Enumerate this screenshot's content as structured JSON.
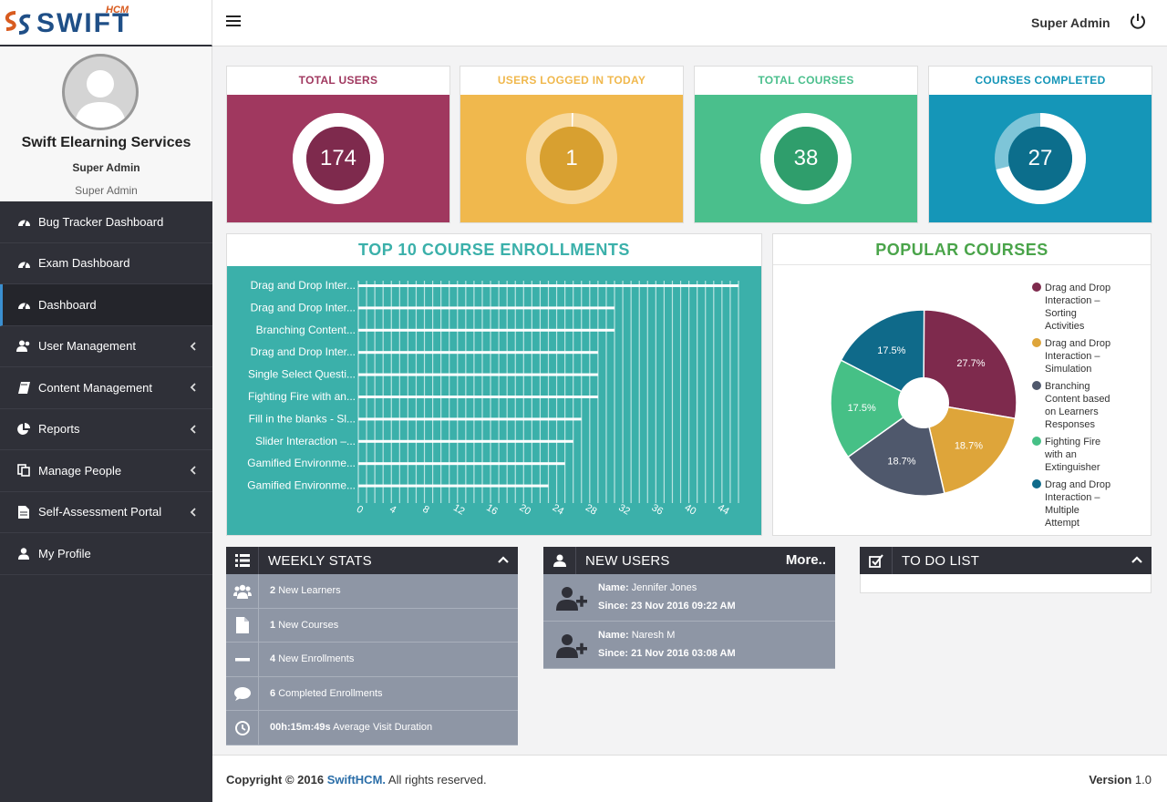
{
  "app": {
    "logo_text": "SWIFT",
    "logo_sub": "HCM"
  },
  "header": {
    "user_name": "Super Admin"
  },
  "profile": {
    "name": "Swift Elearning Services",
    "role": "Super Admin",
    "role_secondary": "Super Admin"
  },
  "sidebar": {
    "items": [
      {
        "label": "Bug Tracker Dashboard",
        "icon": "dashboard-icon",
        "active": false,
        "has_caret": false
      },
      {
        "label": "Exam Dashboard",
        "icon": "dashboard-icon",
        "active": false,
        "has_caret": false
      },
      {
        "label": "Dashboard",
        "icon": "dashboard-icon",
        "active": true,
        "has_caret": false
      },
      {
        "label": "User Management",
        "icon": "users-icon",
        "active": false,
        "has_caret": true
      },
      {
        "label": "Content Management",
        "icon": "book-icon",
        "active": false,
        "has_caret": true
      },
      {
        "label": "Reports",
        "icon": "pie-chart-icon",
        "active": false,
        "has_caret": true
      },
      {
        "label": "Manage People",
        "icon": "copy-icon",
        "active": false,
        "has_caret": true
      },
      {
        "label": "Self-Assessment Portal",
        "icon": "file-icon",
        "active": false,
        "has_caret": true
      },
      {
        "label": "My Profile",
        "icon": "user-icon",
        "active": false,
        "has_caret": false
      }
    ]
  },
  "stats": [
    {
      "title": "TOTAL USERS",
      "value": "174",
      "color": "#a0385f",
      "inner": "#7e2a4d",
      "title_color": "#a0385f",
      "fill": 1.0
    },
    {
      "title": "USERS LOGGED IN TODAY",
      "value": "1",
      "color": "#f0b84d",
      "inner": "#d8a030",
      "title_color": "#f0b84d",
      "fill": 0.006
    },
    {
      "title": "TOTAL COURSES",
      "value": "38",
      "color": "#4abf8c",
      "inner": "#2f9e6c",
      "title_color": "#4abf8c",
      "fill": 1.0
    },
    {
      "title": "COURSES COMPLETED",
      "value": "27",
      "color": "#1596b8",
      "inner": "#0c6e8c",
      "title_color": "#1596b8",
      "fill": 0.71
    }
  ],
  "enrollments": {
    "title": "TOP 10 COURSE ENROLLMENTS"
  },
  "popular": {
    "title": "POPULAR COURSES"
  },
  "chart_data": [
    {
      "type": "bar",
      "orientation": "horizontal",
      "title": "TOP 10 COURSE ENROLLMENTS",
      "categories": [
        "Drag and Drop Inter...",
        "Drag and Drop Inter...",
        "Branching Content...",
        "Drag and Drop Inter...",
        "Single Select Questi...",
        "Fighting Fire with an...",
        "Fill in the blanks - Sl...",
        "Slider Interaction –...",
        "Gamified Environme...",
        "Gamified Environme..."
      ],
      "values": [
        46,
        31,
        31,
        29,
        29,
        29,
        27,
        26,
        25,
        23
      ],
      "xticks": [
        0,
        4,
        8,
        12,
        16,
        20,
        24,
        28,
        32,
        36,
        40,
        44
      ],
      "xlim": [
        0,
        46
      ],
      "grid": true,
      "colors": {
        "background": "#3bb0aa",
        "bar": "#ffffff",
        "title": "#3bb0aa"
      }
    },
    {
      "type": "pie",
      "title": "POPULAR COURSES",
      "legend_position": "right",
      "slices": [
        {
          "label": "Drag and Drop Interaction – Sorting Activities",
          "value": 27.7,
          "display": "27.7%",
          "color": "#7e2a4d"
        },
        {
          "label": "Drag and Drop Interaction – Simulation",
          "value": 18.7,
          "display": "18.7%",
          "color": "#dea53a"
        },
        {
          "label": "Branching Content based on Learners Responses",
          "value": 18.7,
          "display": "18.7%",
          "color": "#4f586c"
        },
        {
          "label": "Fighting Fire with an Extinguisher",
          "value": 17.5,
          "display": "17.5%",
          "color": "#46c086"
        },
        {
          "label": "Drag and Drop Interaction – Multiple Attempt",
          "value": 17.5,
          "display": "17.5%",
          "color": "#0f6a8a"
        }
      ],
      "colors": {
        "title": "#4aa44a"
      }
    }
  ],
  "weekly_stats": {
    "title": "WEEKLY STATS",
    "rows": [
      {
        "icon": "group-icon",
        "bold": "2",
        "text": "New Learners"
      },
      {
        "icon": "document-icon",
        "bold": "1",
        "text": "New Courses"
      },
      {
        "icon": "minus-icon",
        "bold": "4",
        "text": "New Enrollments"
      },
      {
        "icon": "comment-icon",
        "bold": "6",
        "text": "Completed Enrollments"
      },
      {
        "icon": "clock-icon",
        "bold": "00h:15m:49s",
        "text": "Average Visit Duration"
      }
    ]
  },
  "new_users": {
    "title": "NEW USERS",
    "more": "More..",
    "name_label": "Name:",
    "since_label": "Since:",
    "users": [
      {
        "name": "Jennifer Jones",
        "since": "23 Nov 2016 09:22 AM"
      },
      {
        "name": "Naresh M",
        "since": "21 Nov 2016 03:08 AM"
      }
    ]
  },
  "todo": {
    "title": "TO DO LIST"
  },
  "footer": {
    "copyright": "Copyright © 2016",
    "brand": "SwiftHCM.",
    "rights": "All rights reserved.",
    "version_label": "Version",
    "version": "1.0"
  }
}
